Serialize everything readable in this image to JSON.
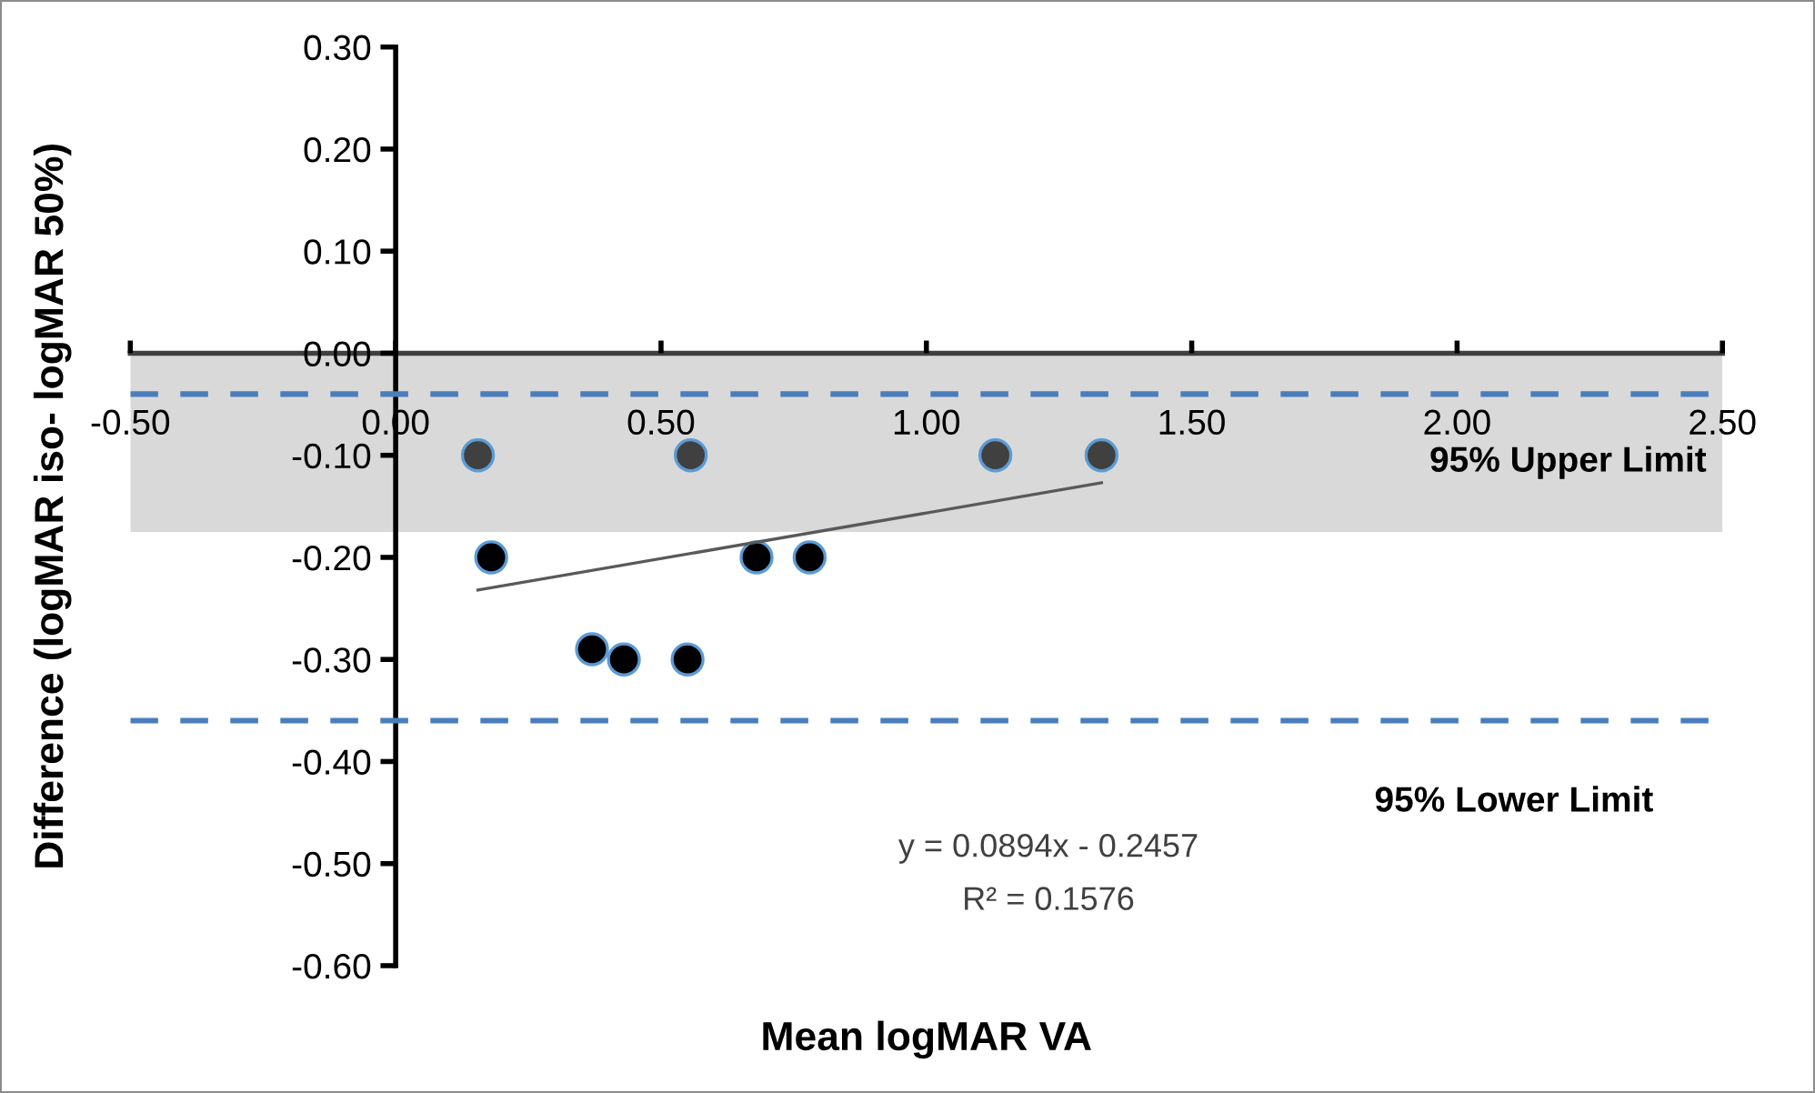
{
  "chart_data": {
    "type": "scatter",
    "xlabel": "Mean logMAR VA",
    "ylabel": "Difference (logMAR iso- logMAR 50%)",
    "series": [
      {
        "color": "#404040",
        "x": [
          0.155,
          0.556,
          1.13,
          1.33
        ],
        "values": [
          -0.1,
          -0.1,
          -0.1,
          -0.1
        ]
      },
      {
        "color": "#000000",
        "x": [
          0.18,
          0.37,
          0.43,
          0.55,
          0.68,
          0.78
        ],
        "values": [
          -0.2,
          -0.29,
          -0.3,
          -0.3,
          -0.2,
          -0.2
        ]
      },
      {
        "type": "line",
        "color": "#595959",
        "marker": "none",
        "x": [
          0.155,
          1.33
        ],
        "values": [
          -0.232,
          -0.127
        ]
      }
    ],
    "marker": "circle",
    "xlim": [
      -0.5,
      2.5
    ],
    "xticks": [
      {
        "value": -0.5,
        "label": "-0.50"
      },
      {
        "value": 0,
        "label": "0.00"
      },
      {
        "value": 0.5,
        "label": "0.50"
      },
      {
        "value": 1,
        "label": "1.00"
      },
      {
        "value": 1.5,
        "label": "1.50"
      },
      {
        "value": 2,
        "label": "2.00"
      },
      {
        "value": 2.5,
        "label": "2.50"
      }
    ],
    "ylim": [
      -0.6,
      0.3
    ],
    "yticks": [
      {
        "value": 0.3,
        "label": "0.30"
      },
      {
        "value": 0.2,
        "label": "0.20"
      },
      {
        "value": 0.1,
        "label": "0.10"
      },
      {
        "value": 0,
        "label": "0.00"
      },
      {
        "value": -0.1,
        "label": "-0.10"
      },
      {
        "value": -0.2,
        "label": "-0.20"
      },
      {
        "value": -0.3,
        "label": "-0.30"
      },
      {
        "value": -0.4,
        "label": "-0.40"
      },
      {
        "value": -0.5,
        "label": "-0.50"
      },
      {
        "value": -0.6,
        "label": "-0.60"
      }
    ],
    "bands": [
      {
        "axis": "y",
        "from": 0,
        "to": -0.175,
        "color": "#d9d9d9"
      }
    ],
    "ref_lines": [
      {
        "axis": "y",
        "value": -0.04,
        "label": "95% Upper Limit",
        "color": "#4a7ebb",
        "line_style": "dashed"
      },
      {
        "axis": "y",
        "value": -0.36,
        "label": "95% Lower Limit",
        "color": "#4a7ebb",
        "line_style": "dashed"
      }
    ],
    "annotations": [
      "y = 0.0894x - 0.2457",
      "R² = 0.1576"
    ],
    "grid": false,
    "legend": false
  }
}
